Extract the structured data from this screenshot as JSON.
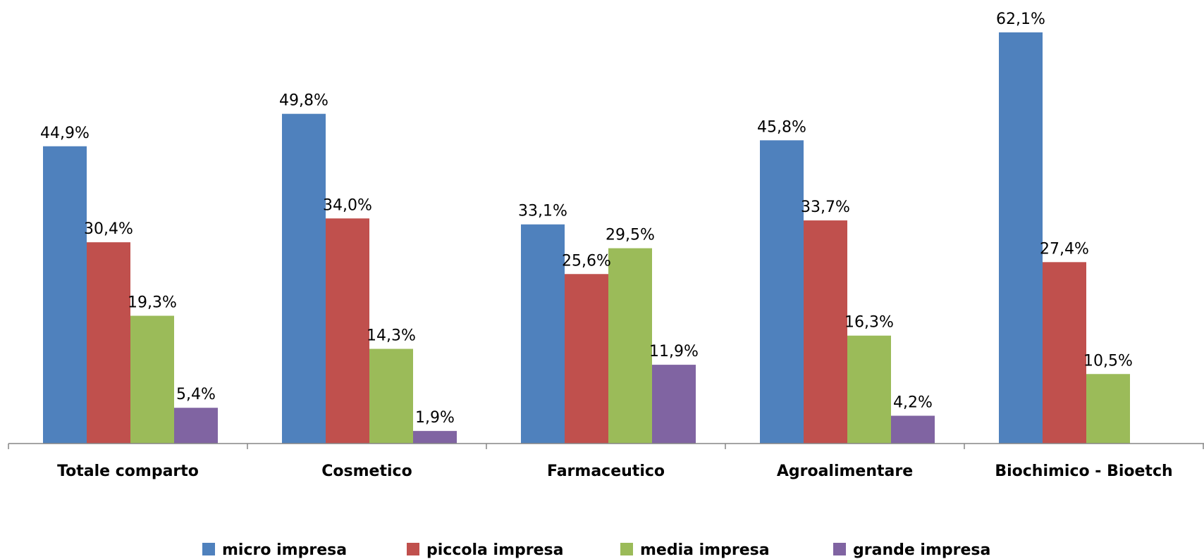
{
  "chart_data": {
    "type": "bar",
    "categories": [
      "Totale comparto",
      "Cosmetico",
      "Farmaceutico",
      "Agroalimentare",
      "Biochimico - Bioetch"
    ],
    "series": [
      {
        "name": "micro impresa",
        "color": "#4F81BD",
        "values": [
          44.9,
          49.8,
          33.1,
          45.8,
          62.1
        ],
        "labels": [
          "44,9%",
          "49,8%",
          "33,1%",
          "45,8%",
          "62,1%"
        ]
      },
      {
        "name": "piccola impresa",
        "color": "#C0504D",
        "values": [
          30.4,
          34.0,
          25.6,
          33.7,
          27.4
        ],
        "labels": [
          "30,4%",
          "34,0%",
          "25,6%",
          "33,7%",
          "27,4%"
        ]
      },
      {
        "name": "media impresa",
        "color": "#9BBB59",
        "values": [
          19.3,
          14.3,
          29.5,
          16.3,
          10.5
        ],
        "labels": [
          "19,3%",
          "14,3%",
          "29,5%",
          "16,3%",
          "10,5%"
        ]
      },
      {
        "name": "grande impresa",
        "color": "#8064A2",
        "values": [
          5.4,
          1.9,
          11.9,
          4.2,
          null
        ],
        "labels": [
          "5,4%",
          "1,9%",
          "11,9%",
          "4,2%",
          null
        ]
      }
    ],
    "ylim": [
      0,
      62.1
    ],
    "grid": false,
    "legend_position": "bottom"
  }
}
